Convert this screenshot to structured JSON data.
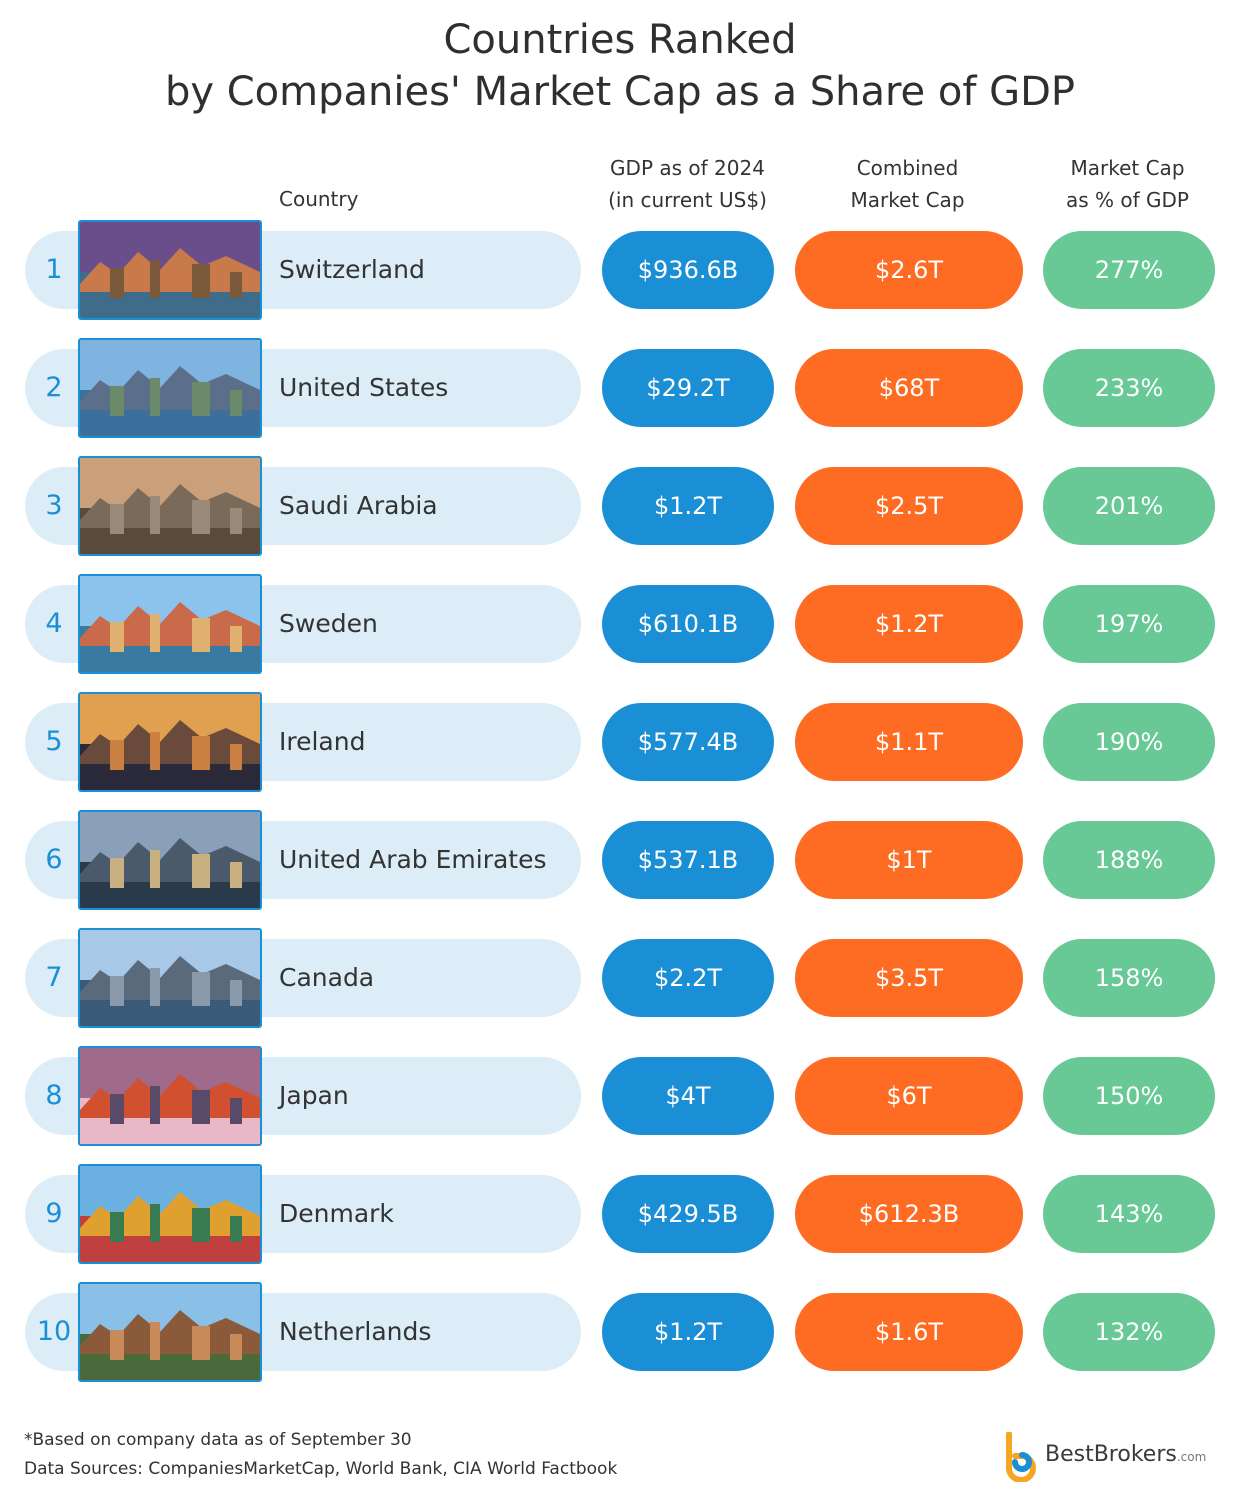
{
  "title": {
    "line1": "Countries Ranked",
    "line2": "by Companies' Market Cap as a Share of GDP"
  },
  "headers": {
    "country": "Country",
    "gdp_line1": "GDP as of 2024",
    "gdp_line2": "(in current US$)",
    "mcap_line1": "Combined",
    "mcap_line2": "Market Cap",
    "pct_line1": "Market Cap",
    "pct_line2": "as % of GDP"
  },
  "colors": {
    "gdp": "#1b8fd6",
    "market_cap": "#fe6b22",
    "percent": "#68c896",
    "band": "#dcedf8",
    "rank": "#1a8fd6"
  },
  "chart_data": {
    "type": "table",
    "title": "Countries Ranked by Companies' Market Cap as a Share of GDP",
    "columns": [
      "Country",
      "GDP as of 2024 (in current US$)",
      "Combined Market Cap",
      "Market Cap as % of GDP"
    ],
    "rows": [
      {
        "rank": "1",
        "country": "Switzerland",
        "gdp": "$936.6B",
        "market_cap": "$2.6T",
        "percent": "277%",
        "photo_icon": "mountain-lake-town-photo"
      },
      {
        "rank": "2",
        "country": "United States",
        "gdp": "$29.2T",
        "market_cap": "$68T",
        "percent": "233%",
        "photo_icon": "statue-of-liberty-skyline-photo"
      },
      {
        "rank": "3",
        "country": "Saudi Arabia",
        "gdp": "$1.2T",
        "market_cap": "$2.5T",
        "percent": "201%",
        "photo_icon": "desert-city-skyline-photo"
      },
      {
        "rank": "4",
        "country": "Sweden",
        "gdp": "$610.1B",
        "market_cap": "$1.2T",
        "percent": "197%",
        "photo_icon": "waterfront-old-town-photo"
      },
      {
        "rank": "5",
        "country": "Ireland",
        "gdp": "$577.4B",
        "market_cap": "$1.1T",
        "percent": "190%",
        "photo_icon": "river-sunset-photo"
      },
      {
        "rank": "6",
        "country": "United Arab Emirates",
        "gdp": "$537.1B",
        "market_cap": "$1T",
        "percent": "188%",
        "photo_icon": "skyscraper-skyline-photo"
      },
      {
        "rank": "7",
        "country": "Canada",
        "gdp": "$2.2T",
        "market_cap": "$3.5T",
        "percent": "158%",
        "photo_icon": "tower-skyline-photo"
      },
      {
        "rank": "8",
        "country": "Japan",
        "gdp": "$4T",
        "market_cap": "$6T",
        "percent": "150%",
        "photo_icon": "pagoda-mount-fuji-photo"
      },
      {
        "rank": "9",
        "country": "Denmark",
        "gdp": "$429.5B",
        "market_cap": "$612.3B",
        "percent": "143%",
        "photo_icon": "colorful-harbor-photo"
      },
      {
        "rank": "10",
        "country": "Netherlands",
        "gdp": "$1.2T",
        "market_cap": "$1.6T",
        "percent": "132%",
        "photo_icon": "canal-houses-photo"
      }
    ]
  },
  "footnotes": {
    "note": "*Based on company data as of September 30",
    "sources": "Data Sources: CompaniesMarketCap, World Bank, CIA World Factbook"
  },
  "logo": {
    "name": "BestBrokers",
    "domain": ".com",
    "icon": "bestbrokers-logo-icon"
  }
}
